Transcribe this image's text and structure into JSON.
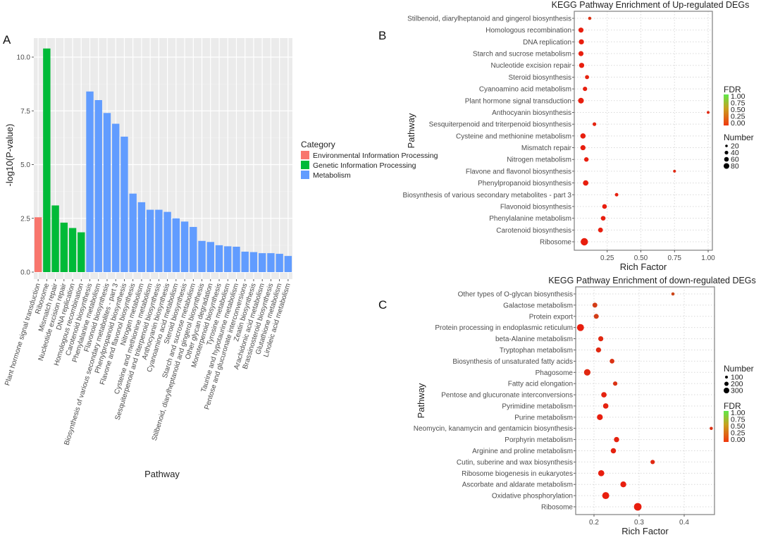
{
  "chart_data": [
    {
      "panel": "A",
      "type": "bar",
      "xlabel": "Pathway",
      "ylabel": "-log10(P-value)",
      "ylim": [
        0,
        10.8
      ],
      "yticks": [
        "0.0",
        "2.5",
        "5.0",
        "7.5",
        "10.0"
      ],
      "grid": true,
      "legend": {
        "title": "Category",
        "placement": "right",
        "entries": [
          {
            "name": "Environmental Information Processing",
            "color": "#F8766D"
          },
          {
            "name": "Genetic Information Processing",
            "color": "#00BA38"
          },
          {
            "name": "Metabolism",
            "color": "#619CFF"
          }
        ]
      },
      "categories": [
        "Plant hormone signal transduction",
        "Ribosome",
        "Mismatch repair",
        "Nucleotide excision repair",
        "DNA replication",
        "Homologous recombination",
        "Carotenoid biosynthesis",
        "Phenylalanine metabolism",
        "Flavonoid biosynthesis",
        "Biosynthesis of various secondary metabolites - part 3",
        "Phenylpropanoid biosynthesis",
        "Flavone and flavonol biosynthesis",
        "Nitrogen metabolism",
        "Cysteine and methionine metabolism",
        "Sesquiterpenoid and triterpenoid biosynthesis",
        "Anthocyanin biosynthesis",
        "Cyanoamino acid metabolism",
        "Steroid biosynthesis",
        "Starch and sucrose metabolism",
        "Stilbenoid, diarylheptanoid and gingerol biosynthesis",
        "Other glycan degradation",
        "Monoterpenoid biosynthesis",
        "Tyrosine metabolism",
        "Taurine and hypotaurine metabolism",
        "Pentose and glucuronate interconversions",
        "Zeatin biosynthesis",
        "Arachidonic acid metabolism",
        "Brassinosteroid biosynthesis",
        "Glutathione metabolism",
        "Linoleic acid metabolism"
      ],
      "values": [
        2.55,
        10.4,
        3.1,
        2.3,
        2.05,
        1.85,
        8.4,
        8.0,
        7.4,
        6.9,
        6.3,
        3.65,
        3.25,
        2.9,
        2.9,
        2.8,
        2.5,
        2.35,
        2.1,
        1.45,
        1.4,
        1.25,
        1.2,
        1.18,
        0.95,
        0.93,
        0.88,
        0.88,
        0.85,
        0.75
      ],
      "category_index": [
        0,
        1,
        1,
        1,
        1,
        1,
        2,
        2,
        2,
        2,
        2,
        2,
        2,
        2,
        2,
        2,
        2,
        2,
        2,
        2,
        2,
        2,
        2,
        2,
        2,
        2,
        2,
        2,
        2,
        2
      ]
    },
    {
      "panel": "B",
      "type": "scatter",
      "title": "KEGG Pathway Enrichment of Up-regulated  DEGs",
      "xlabel": "Rich Factor",
      "ylabel": "Pathway",
      "xlim": [
        0,
        1.03
      ],
      "xticks": [
        "0.25",
        "0.50",
        "0.75",
        "1.00"
      ],
      "grid": true,
      "legend": {
        "fdr_title": "FDR",
        "fdr_ticks": [
          "1.00",
          "0.75",
          "0.50",
          "0.25",
          "0.00"
        ],
        "number_title": "Number",
        "number_ticks": [
          "20",
          "40",
          "60",
          "80"
        ],
        "placement": "right"
      },
      "pathways": [
        "Stilbenoid, diarylheptanoid and gingerol biosynthesis",
        "Homologous recombination",
        "DNA replication",
        "Starch and sucrose metabolism",
        "Nucleotide excision repair",
        "Steroid biosynthesis",
        "Cyanoamino acid metabolism",
        "Plant hormone signal transduction",
        "Anthocyanin biosynthesis",
        "Sesquiterpenoid and triterpenoid biosynthesis",
        "Cysteine and methionine metabolism",
        "Mismatch repair",
        "Nitrogen metabolism",
        "Flavone and flavonol biosynthesis",
        "Phenylpropanoid biosynthesis",
        "Biosynthesis of various secondary metabolites - part 3",
        "Flavonoid biosynthesis",
        "Phenylalanine metabolism",
        "Carotenoid biosynthesis",
        "Ribosome"
      ],
      "rich_factor": [
        0.12,
        0.055,
        0.058,
        0.055,
        0.06,
        0.1,
        0.085,
        0.055,
        1.0,
        0.155,
        0.07,
        0.07,
        0.095,
        0.75,
        0.09,
        0.32,
        0.23,
        0.22,
        0.2,
        0.08
      ],
      "number": [
        6,
        28,
        30,
        28,
        30,
        14,
        18,
        40,
        3,
        10,
        32,
        30,
        20,
        3,
        35,
        8,
        22,
        22,
        24,
        80
      ],
      "fdr": [
        0.1,
        0.0,
        0.0,
        0.0,
        0.0,
        0.02,
        0.01,
        0.0,
        0.05,
        0.03,
        0.0,
        0.0,
        0.0,
        0.05,
        0.0,
        0.01,
        0.0,
        0.0,
        0.0,
        0.0
      ]
    },
    {
      "panel": "C",
      "type": "scatter",
      "title": "KEGG Pathway Enrichment of down-regulated DEGs",
      "xlabel": "Rich Factor",
      "ylabel": "Pathway",
      "xlim": [
        0.159,
        0.466
      ],
      "xticks": [
        "0.2",
        "0.3",
        "0.4"
      ],
      "grid": true,
      "legend": {
        "number_title": "Number",
        "number_ticks": [
          "100",
          "200",
          "300"
        ],
        "fdr_title": "FDR",
        "fdr_ticks": [
          "1.00",
          "0.75",
          "0.50",
          "0.25",
          "0.00"
        ],
        "placement": "right"
      },
      "pathways": [
        "Other types of O-glycan biosynthesis",
        "Galactose metabolism",
        "Protein export",
        "Protein processing in endoplasmic reticulum",
        "beta-Alanine metabolism",
        "Tryptophan metabolism",
        "Biosynthesis of unsaturated fatty acids",
        "Phagosome",
        "Fatty acid elongation",
        "Pentose and glucuronate interconversions",
        "Pyrimidine metabolism",
        "Purine metabolism",
        "Neomycin, kanamycin and gentamicin biosynthesis",
        "Porphyrin metabolism",
        "Arginine and proline metabolism",
        "Cutin, suberine and wax biosynthesis",
        "Ribosome biogenesis in eukaryotes",
        "Ascorbate and aldarate metabolism",
        "Oxidative phosphorylation",
        "Ribosome"
      ],
      "rich_factor": [
        0.375,
        0.202,
        0.205,
        0.17,
        0.215,
        0.21,
        0.24,
        0.185,
        0.247,
        0.222,
        0.226,
        0.213,
        0.46,
        0.25,
        0.243,
        0.33,
        0.216,
        0.265,
        0.226,
        0.297
      ],
      "number": [
        20,
        90,
        90,
        240,
        100,
        100,
        80,
        200,
        60,
        120,
        120,
        150,
        20,
        110,
        110,
        60,
        170,
        150,
        240,
        300
      ],
      "fdr": [
        0.2,
        0.15,
        0.15,
        0.0,
        0.05,
        0.05,
        0.1,
        0.05,
        0.1,
        0.02,
        0.02,
        0.0,
        0.1,
        0.02,
        0.02,
        0.05,
        0.0,
        0.0,
        0.0,
        0.0
      ]
    }
  ],
  "panel_labels": {
    "a": "A",
    "b": "B",
    "c": "C"
  }
}
